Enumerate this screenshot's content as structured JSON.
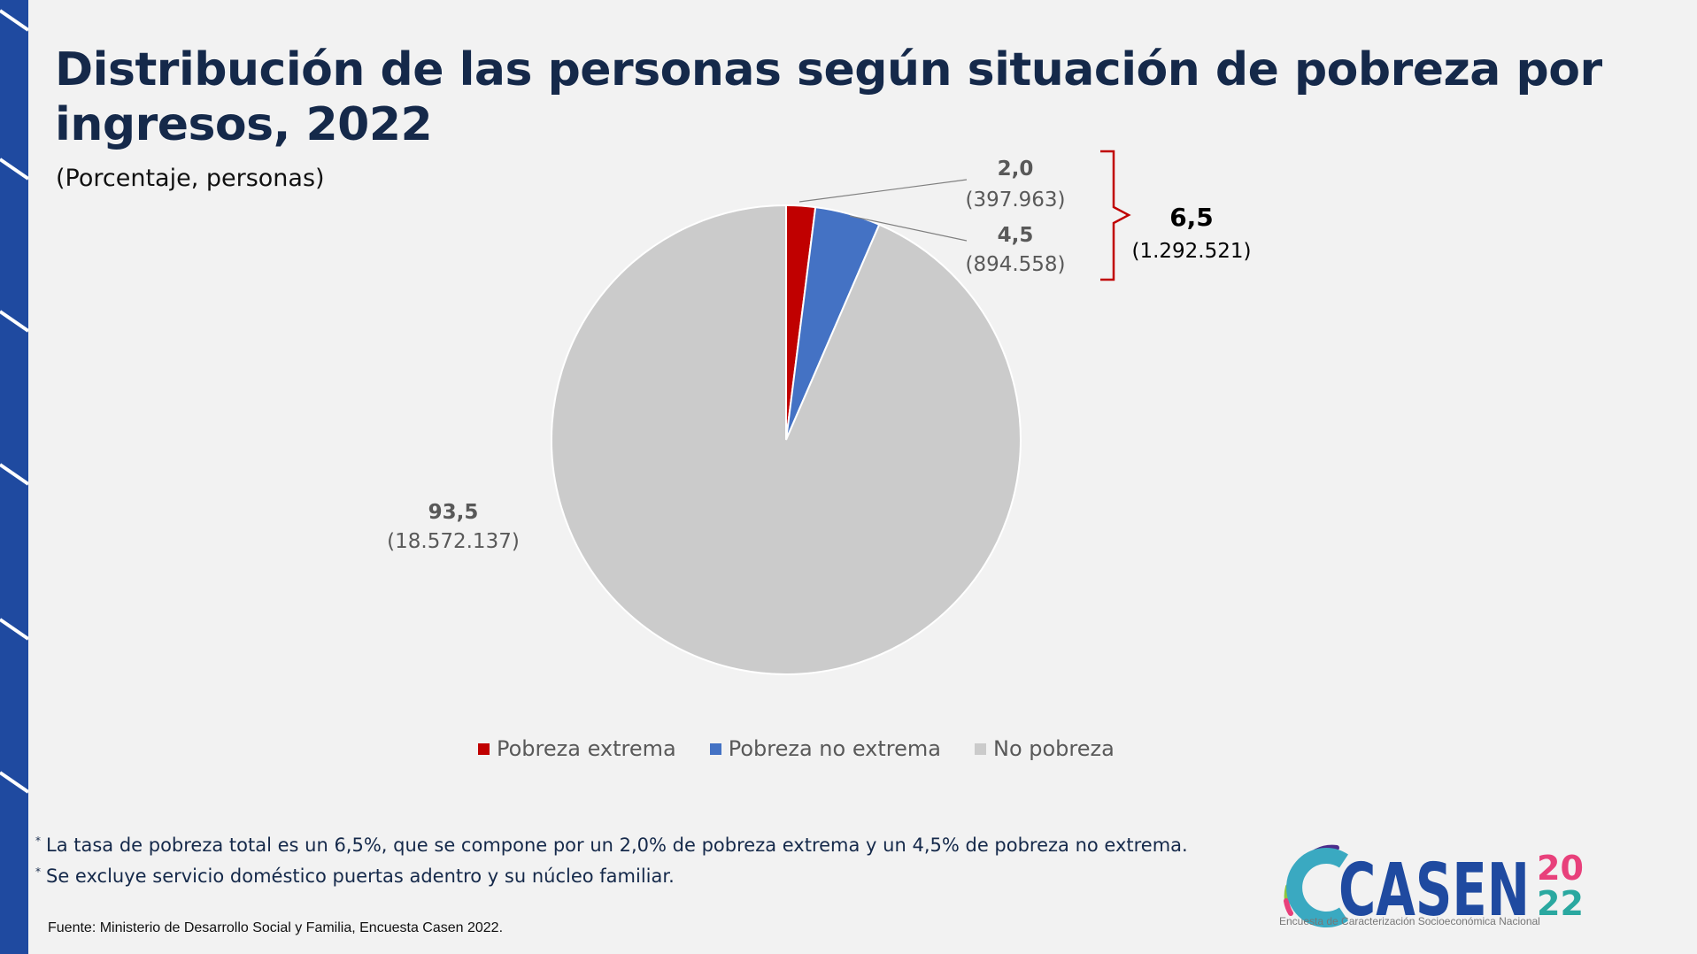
{
  "title": "Distribución de las personas según situación de pobreza por ingresos, 2022",
  "subtitle": "(Porcentaje, personas)",
  "colors": {
    "pobreza_extrema": "#c00000",
    "pobreza_no_extrema": "#4472c4",
    "no_pobreza": "#cbcbcb",
    "bracket": "#c00000",
    "title": "#15294a",
    "sidebar": "#1f4aa0"
  },
  "chart_data": {
    "type": "pie",
    "title": "Distribución de las personas según situación de pobreza por ingresos, 2022",
    "subtitle": "(Porcentaje, personas)",
    "legend_position": "bottom",
    "categories": [
      "Pobreza extrema",
      "Pobreza no extrema",
      "No pobreza"
    ],
    "values": [
      2.0,
      4.5,
      93.5
    ],
    "value_labels": [
      "2,0",
      "4,5",
      "93,5"
    ],
    "counts": [
      "(397.963)",
      "(894.558)",
      "(18.572.137)"
    ],
    "total_poverty": {
      "value": "6,5",
      "count": "(1.292.521)"
    }
  },
  "notes": [
    "La tasa de pobreza total es un 6,5%, que se compone por un 2,0% de pobreza extrema y un 4,5% de pobreza no extrema.",
    "Se excluye servicio doméstico puertas adentro y su núcleo familiar."
  ],
  "note_marker": "*",
  "source": "Fuente: Ministerio de Desarrollo Social y Familia, Encuesta Casen 2022.",
  "logo": {
    "word": "CASEN",
    "year_top": "20",
    "year_bottom": "22",
    "tagline": "Encuesta de Caracterización Socioeconómica Nacional"
  }
}
